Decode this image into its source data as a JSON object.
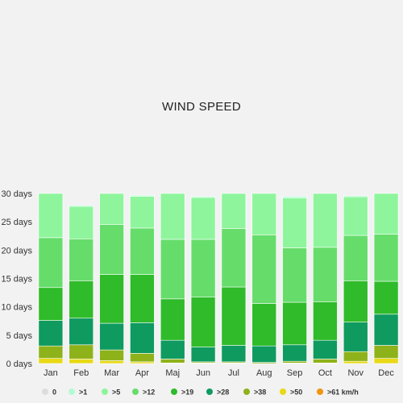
{
  "chart_data": {
    "type": "bar",
    "stacked": true,
    "title": "WIND SPEED",
    "xlabel": "",
    "ylabel": "",
    "ylim": [
      0,
      30
    ],
    "y_tick_values": [
      0,
      5,
      10,
      15,
      20,
      25,
      30
    ],
    "y_tick_labels": [
      "0 days",
      "5 days",
      "10 days",
      "15 days",
      "20 days",
      "25 days",
      "30 days"
    ],
    "grid": false,
    "legend_position": "bottom",
    "categories": [
      "Jan",
      "Feb",
      "Mar",
      "Apr",
      "Maj",
      "Jun",
      "Jul",
      "Aug",
      "Sep",
      "Oct",
      "Nov",
      "Dec"
    ],
    "series": [
      {
        "name": ">61 km/h",
        "color": "#f0960f",
        "values": [
          0,
          0,
          0,
          0,
          0,
          0,
          0,
          0,
          0,
          0,
          0,
          0
        ]
      },
      {
        "name": ">50",
        "color": "#e8d916",
        "values": [
          0.9,
          0.8,
          0.5,
          0.3,
          0.1,
          0.1,
          0.1,
          0.0,
          0.1,
          0.1,
          0.4,
          0.9
        ]
      },
      {
        "name": ">38",
        "color": "#8eb21a",
        "values": [
          2.2,
          2.5,
          1.9,
          1.5,
          0.7,
          0.2,
          0.2,
          0.2,
          0.3,
          0.7,
          1.7,
          2.3
        ]
      },
      {
        "name": ">28",
        "color": "#0f9a60",
        "values": [
          4.5,
          4.7,
          4.7,
          5.4,
          3.3,
          2.6,
          2.9,
          2.9,
          2.9,
          3.3,
          5.2,
          5.5
        ]
      },
      {
        "name": ">19",
        "color": "#2fbb2a",
        "values": [
          5.8,
          6.6,
          8.6,
          8.5,
          7.3,
          8.8,
          10.3,
          7.5,
          7.5,
          6.8,
          7.3,
          5.8
        ]
      },
      {
        "name": ">12",
        "color": "#66dd6b",
        "values": [
          8.8,
          7.4,
          8.8,
          8.2,
          10.5,
          10.2,
          10.3,
          12.1,
          9.6,
          9.6,
          8.0,
          8.3
        ]
      },
      {
        "name": ">5",
        "color": "#8ef59c",
        "values": [
          7.8,
          5.7,
          5.5,
          5.6,
          8.1,
          7.4,
          6.2,
          7.3,
          8.8,
          9.5,
          6.8,
          7.2
        ]
      },
      {
        "name": ">1",
        "color": "#b4fad3",
        "values": [
          0,
          0.2,
          0,
          0.2,
          0,
          0.2,
          0,
          0,
          0.3,
          0,
          0.2,
          0
        ]
      },
      {
        "name": "0",
        "color": "#dcdcdc",
        "values": [
          0,
          0,
          0,
          0,
          0,
          0,
          0,
          0,
          0,
          0,
          0,
          0
        ]
      }
    ],
    "legend_order": [
      "0",
      ">1",
      ">5",
      ">12",
      ">19",
      ">28",
      ">38",
      ">50",
      ">61 km/h"
    ]
  }
}
